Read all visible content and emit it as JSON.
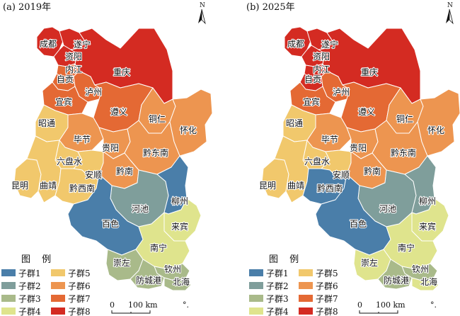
{
  "panels": [
    {
      "title": "(a) 2019年",
      "regions": [
        {
          "key": "chengdu",
          "label": "成都",
          "group": 8
        },
        {
          "key": "suining",
          "label": "遂宁",
          "group": 8
        },
        {
          "key": "ziyang",
          "label": "资阳",
          "group": 8
        },
        {
          "key": "neijiang",
          "label": "内江",
          "group": 7
        },
        {
          "key": "zigong",
          "label": "自贡",
          "group": 7
        },
        {
          "key": "luzhou",
          "label": "泸州",
          "group": 7
        },
        {
          "key": "yibin",
          "label": "宜宾",
          "group": 7
        },
        {
          "key": "chongqing",
          "label": "重庆",
          "group": 8
        },
        {
          "key": "zunyi",
          "label": "遵义",
          "group": 7
        },
        {
          "key": "tongren",
          "label": "铜仁",
          "group": 6
        },
        {
          "key": "zhaotong",
          "label": "昭通",
          "group": 5
        },
        {
          "key": "bijie",
          "label": "毕节",
          "group": 6
        },
        {
          "key": "guiyang",
          "label": "贵阳",
          "group": 6
        },
        {
          "key": "qiandongnan",
          "label": "黔东南",
          "group": 6
        },
        {
          "key": "huaihua",
          "label": "怀化",
          "group": 6
        },
        {
          "key": "liupanshui",
          "label": "六盘水",
          "group": 5
        },
        {
          "key": "anshun",
          "label": "安顺",
          "group": 5
        },
        {
          "key": "qiannan",
          "label": "黔南",
          "group": 6
        },
        {
          "key": "kunming",
          "label": "昆明",
          "group": 5
        },
        {
          "key": "qujing",
          "label": "曲靖",
          "group": 5
        },
        {
          "key": "qianxinan",
          "label": "黔西南",
          "group": 5
        },
        {
          "key": "hechi",
          "label": "河池",
          "group": 2
        },
        {
          "key": "liuzhou",
          "label": "柳州",
          "group": 1
        },
        {
          "key": "baise",
          "label": "百色",
          "group": 1
        },
        {
          "key": "laibin",
          "label": "来宾",
          "group": 4
        },
        {
          "key": "nanning",
          "label": "南宁",
          "group": 4
        },
        {
          "key": "chongzuo",
          "label": "崇左",
          "group": 3
        },
        {
          "key": "qinzhou",
          "label": "钦州",
          "group": 3
        },
        {
          "key": "fangchenggang",
          "label": "防城港",
          "group": 3
        },
        {
          "key": "beihai",
          "label": "北海",
          "group": 3
        }
      ]
    },
    {
      "title": "(b) 2025年",
      "regions": [
        {
          "key": "chengdu",
          "label": "成都",
          "group": 8
        },
        {
          "key": "suining",
          "label": "遂宁",
          "group": 8
        },
        {
          "key": "ziyang",
          "label": "资阳",
          "group": 8
        },
        {
          "key": "neijiang",
          "label": "内江",
          "group": 8
        },
        {
          "key": "zigong",
          "label": "自贡",
          "group": 8
        },
        {
          "key": "luzhou",
          "label": "泸州",
          "group": 7
        },
        {
          "key": "yibin",
          "label": "宜宾",
          "group": 7
        },
        {
          "key": "chongqing",
          "label": "重庆",
          "group": 8
        },
        {
          "key": "zunyi",
          "label": "遵义",
          "group": 7
        },
        {
          "key": "tongren",
          "label": "铜仁",
          "group": 6
        },
        {
          "key": "zhaotong",
          "label": "昭通",
          "group": 5
        },
        {
          "key": "bijie",
          "label": "毕节",
          "group": 6
        },
        {
          "key": "guiyang",
          "label": "贵阳",
          "group": 6
        },
        {
          "key": "qiandongnan",
          "label": "黔东南",
          "group": 6
        },
        {
          "key": "huaihua",
          "label": "怀化",
          "group": 6
        },
        {
          "key": "liupanshui",
          "label": "六盘水",
          "group": 5
        },
        {
          "key": "anshun",
          "label": "安顺",
          "group": 5
        },
        {
          "key": "qiannan",
          "label": "黔南",
          "group": 6
        },
        {
          "key": "kunming",
          "label": "昆明",
          "group": 5
        },
        {
          "key": "qujing",
          "label": "曲靖",
          "group": 5
        },
        {
          "key": "qianxinan",
          "label": "黔西南",
          "group": 1
        },
        {
          "key": "hechi",
          "label": "河池",
          "group": 2
        },
        {
          "key": "liuzhou",
          "label": "柳州",
          "group": 2
        },
        {
          "key": "baise",
          "label": "百色",
          "group": 1
        },
        {
          "key": "laibin",
          "label": "来宾",
          "group": 4
        },
        {
          "key": "nanning",
          "label": "南宁",
          "group": 4
        },
        {
          "key": "chongzuo",
          "label": "崇左",
          "group": 4
        },
        {
          "key": "qinzhou",
          "label": "钦州",
          "group": 3
        },
        {
          "key": "fangchenggang",
          "label": "防城港",
          "group": 3
        },
        {
          "key": "beihai",
          "label": "北海",
          "group": 4
        }
      ]
    }
  ],
  "legend": {
    "title": "图 例",
    "items": [
      {
        "group": 1,
        "label": "子群1",
        "color": "#4a7ea9"
      },
      {
        "group": 2,
        "label": "子群2",
        "color": "#7f9e9b"
      },
      {
        "group": 3,
        "label": "子群3",
        "color": "#a9ba8a"
      },
      {
        "group": 4,
        "label": "子群4",
        "color": "#dfe48d"
      },
      {
        "group": 5,
        "label": "子群5",
        "color": "#f1c86c"
      },
      {
        "group": 6,
        "label": "子群6",
        "color": "#ed9550"
      },
      {
        "group": 7,
        "label": "子群7",
        "color": "#e46934"
      },
      {
        "group": 8,
        "label": "子群8",
        "color": "#d42b22"
      }
    ]
  },
  "north_label": "N",
  "scale_bar": {
    "start": "0",
    "end": "100 km"
  },
  "south_islands_mark": "°."
}
